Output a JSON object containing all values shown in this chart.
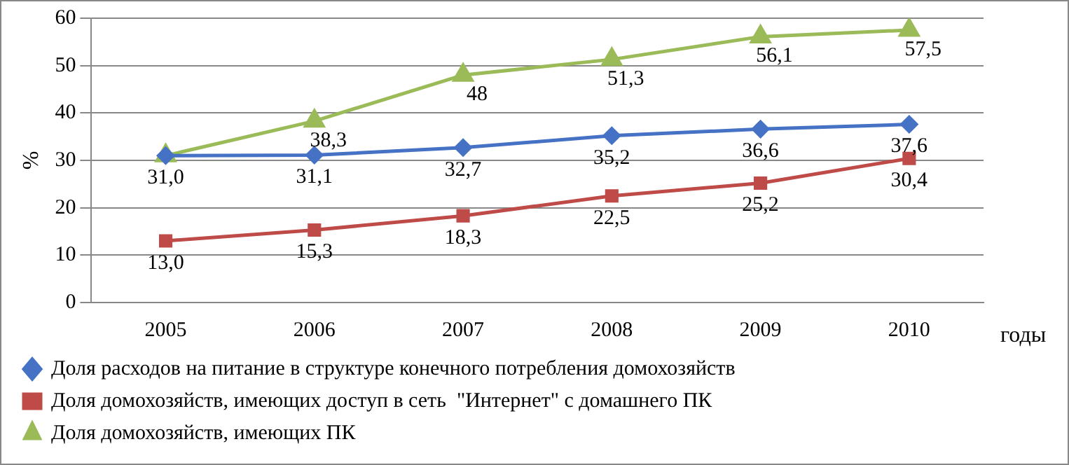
{
  "chart_data": {
    "type": "line",
    "xlabel": "годы",
    "ylabel": "%",
    "categories": [
      "2005",
      "2006",
      "2007",
      "2008",
      "2009",
      "2010"
    ],
    "series": [
      {
        "name": "Доля расходов на питание в структуре конечного потребления домохозяйств",
        "color": "#4572c4",
        "marker": "diamond",
        "values": [
          31.0,
          31.1,
          32.7,
          35.2,
          36.6,
          37.6
        ],
        "value_labels": [
          "31,0",
          "31,1",
          "32,7",
          "35,2",
          "36,6",
          "37,6"
        ]
      },
      {
        "name": "Доля домохозяйств, имеющих доступ в сеть  \"Интернет\" с домашнего ПК",
        "color": "#be4b48",
        "marker": "square",
        "values": [
          13.0,
          15.3,
          18.3,
          22.5,
          25.2,
          30.4
        ],
        "value_labels": [
          "13,0",
          "15,3",
          "18,3",
          "22,5",
          "25,2",
          "30,4"
        ]
      },
      {
        "name": "Доля домохозяйств, имеющих ПК",
        "color": "#9bbb59",
        "marker": "triangle",
        "values": [
          31.0,
          38.3,
          48,
          51.3,
          56.1,
          57.5
        ],
        "value_labels": [
          null,
          "38,3",
          "48",
          "51,3",
          "56,1",
          "57,5"
        ]
      }
    ],
    "ylim": [
      0,
      60
    ],
    "yticks": [
      0,
      10,
      20,
      30,
      40,
      50,
      60
    ],
    "grid": "y",
    "legend": "bottom"
  }
}
